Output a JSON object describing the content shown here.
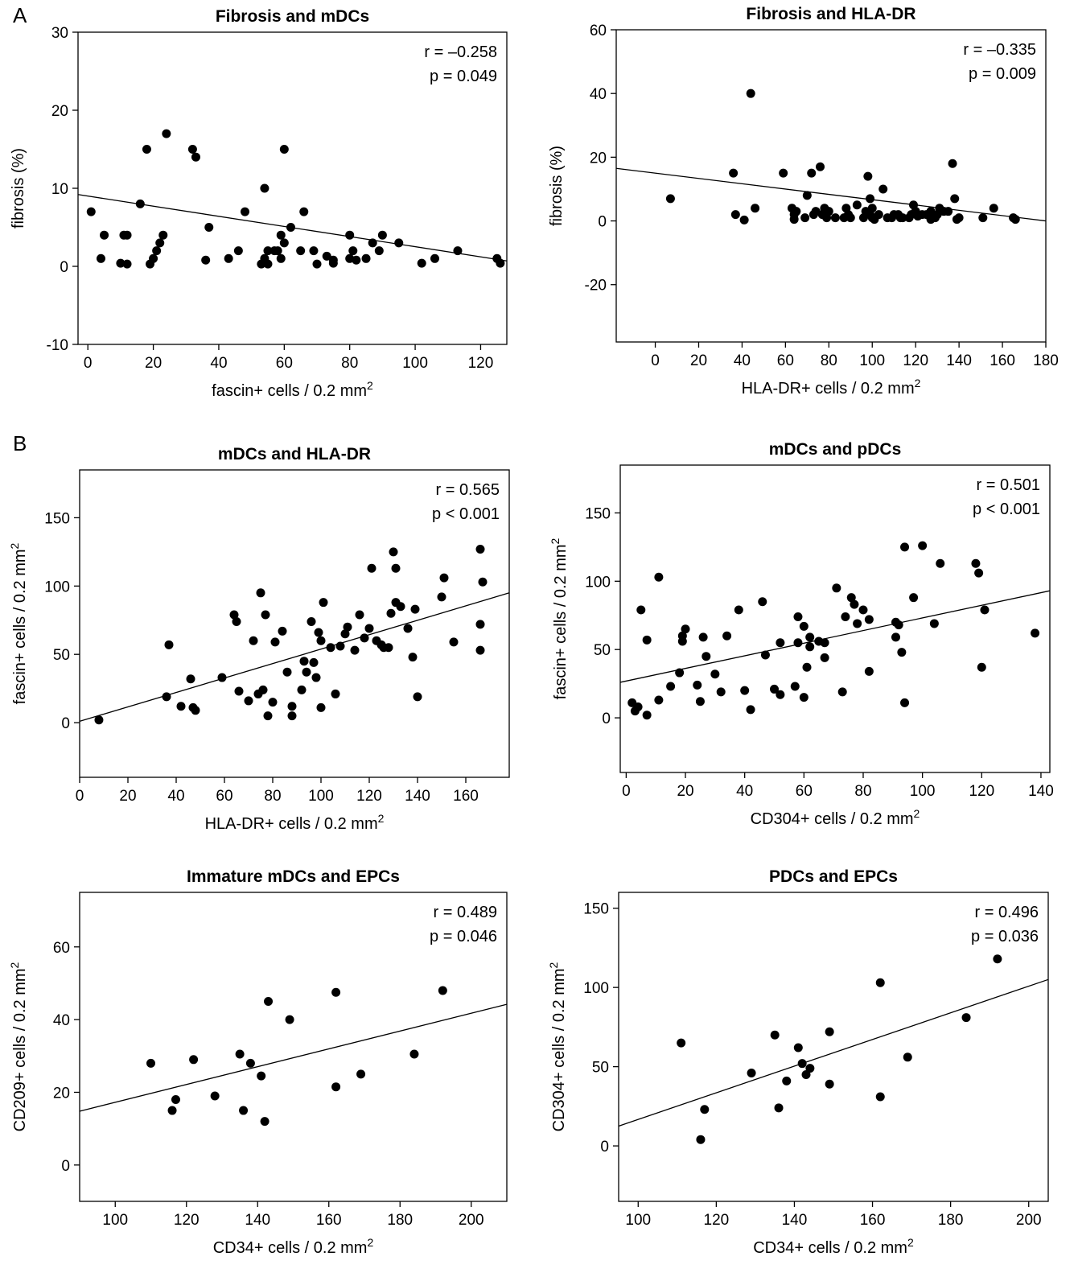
{
  "panel_labels": [
    "A",
    "B"
  ],
  "chart_data": [
    {
      "type": "scatter",
      "title": "Fibrosis and mDCs",
      "xlabel": "fascin+ cells / 0.2 mm",
      "xlabel_sup": "2",
      "ylabel": "fibrosis (%)",
      "xlim": [
        -3,
        128
      ],
      "ylim": [
        -10,
        30
      ],
      "xticks": [
        0,
        20,
        40,
        60,
        80,
        100,
        120
      ],
      "yticks": [
        -10,
        0,
        10,
        20,
        30
      ],
      "stats": [
        "r = –0.258",
        "p = 0.049"
      ],
      "grid": false,
      "fit_line": [
        [
          -3,
          9.2
        ],
        [
          128,
          0.7
        ]
      ],
      "points": [
        [
          1,
          7
        ],
        [
          4,
          1
        ],
        [
          5,
          4
        ],
        [
          10,
          0.4
        ],
        [
          11,
          4
        ],
        [
          12,
          4
        ],
        [
          12,
          0.3
        ],
        [
          16,
          8
        ],
        [
          18,
          15
        ],
        [
          19,
          0.3
        ],
        [
          20,
          1
        ],
        [
          21,
          2
        ],
        [
          22,
          3
        ],
        [
          23,
          4
        ],
        [
          24,
          17
        ],
        [
          32,
          15
        ],
        [
          33,
          14
        ],
        [
          36,
          0.8
        ],
        [
          37,
          5
        ],
        [
          43,
          1
        ],
        [
          46,
          2
        ],
        [
          48,
          7
        ],
        [
          53,
          0.3
        ],
        [
          54,
          1
        ],
        [
          54,
          10
        ],
        [
          55,
          2
        ],
        [
          55,
          0.3
        ],
        [
          57,
          2
        ],
        [
          58,
          2
        ],
        [
          59,
          1
        ],
        [
          59,
          4
        ],
        [
          60,
          3
        ],
        [
          60,
          15
        ],
        [
          62,
          5
        ],
        [
          65,
          2
        ],
        [
          66,
          7
        ],
        [
          69,
          2
        ],
        [
          70,
          0.3
        ],
        [
          73,
          1.3
        ],
        [
          75,
          0.8
        ],
        [
          75,
          0.4
        ],
        [
          80,
          4
        ],
        [
          80,
          1
        ],
        [
          81,
          2
        ],
        [
          82,
          0.8
        ],
        [
          85,
          1
        ],
        [
          87,
          3
        ],
        [
          89,
          2
        ],
        [
          90,
          4
        ],
        [
          95,
          3
        ],
        [
          102,
          0.4
        ],
        [
          106,
          1
        ],
        [
          113,
          2
        ],
        [
          125,
          1
        ],
        [
          126,
          0.4
        ]
      ]
    },
    {
      "type": "scatter",
      "title": "Fibrosis and HLA-DR",
      "xlabel": "HLA-DR+ cells / 0.2 mm",
      "xlabel_sup": "2",
      "ylabel": "fibrosis (%)",
      "xlim": [
        -18,
        180
      ],
      "ylim": [
        -38,
        60
      ],
      "xticks": [
        0,
        20,
        40,
        60,
        80,
        100,
        120,
        140,
        160,
        180
      ],
      "yticks": [
        -20,
        0,
        20,
        40,
        60
      ],
      "stats": [
        "r = –0.335",
        "p = 0.009"
      ],
      "grid": false,
      "fit_line": [
        [
          -18,
          16.5
        ],
        [
          180,
          0
        ]
      ],
      "points": [
        [
          7,
          7
        ],
        [
          36,
          15
        ],
        [
          37,
          2
        ],
        [
          41,
          0.3
        ],
        [
          44,
          40
        ],
        [
          46,
          4
        ],
        [
          59,
          15
        ],
        [
          63,
          4
        ],
        [
          64,
          0.5
        ],
        [
          64,
          2
        ],
        [
          65,
          3
        ],
        [
          69,
          1
        ],
        [
          70,
          8
        ],
        [
          72,
          15
        ],
        [
          73,
          2
        ],
        [
          74,
          3
        ],
        [
          76,
          17
        ],
        [
          77,
          2
        ],
        [
          78,
          4
        ],
        [
          79,
          1
        ],
        [
          80,
          3
        ],
        [
          83,
          1
        ],
        [
          87,
          1
        ],
        [
          88,
          4
        ],
        [
          89,
          2
        ],
        [
          90,
          1
        ],
        [
          93,
          5
        ],
        [
          96,
          1
        ],
        [
          97,
          3
        ],
        [
          98,
          14
        ],
        [
          99,
          7
        ],
        [
          99,
          2
        ],
        [
          100,
          1
        ],
        [
          100,
          4
        ],
        [
          101,
          0.5
        ],
        [
          103,
          2
        ],
        [
          105,
          10
        ],
        [
          107,
          1
        ],
        [
          109,
          1
        ],
        [
          110,
          2
        ],
        [
          112,
          2
        ],
        [
          113,
          1
        ],
        [
          114,
          1
        ],
        [
          117,
          1
        ],
        [
          118,
          2
        ],
        [
          119,
          5
        ],
        [
          120,
          3
        ],
        [
          121,
          1.5
        ],
        [
          123,
          2
        ],
        [
          125,
          2
        ],
        [
          127,
          0.5
        ],
        [
          127,
          3
        ],
        [
          129,
          1
        ],
        [
          130,
          2
        ],
        [
          131,
          4
        ],
        [
          133,
          3
        ],
        [
          135,
          3
        ],
        [
          137,
          18
        ],
        [
          138,
          7
        ],
        [
          139,
          0.5
        ],
        [
          140,
          1
        ],
        [
          151,
          1
        ],
        [
          156,
          4
        ],
        [
          165,
          1
        ],
        [
          166,
          0.5
        ]
      ]
    },
    {
      "type": "scatter",
      "title": "mDCs and HLA-DR",
      "xlabel": "HLA-DR+ cells / 0.2 mm",
      "xlabel_sup": "2",
      "ylabel": "fascin+ cells / 0.2 mm",
      "ylabel_sup": "2",
      "xlim": [
        0,
        178
      ],
      "ylim": [
        -40,
        185
      ],
      "xticks": [
        0,
        20,
        40,
        60,
        80,
        100,
        120,
        140,
        160
      ],
      "yticks": [
        0,
        50,
        100,
        150
      ],
      "stats": [
        "r = 0.565",
        "p < 0.001"
      ],
      "grid": false,
      "fit_line": [
        [
          0,
          1
        ],
        [
          178,
          95
        ]
      ],
      "points": [
        [
          8,
          2
        ],
        [
          36,
          19
        ],
        [
          37,
          57
        ],
        [
          42,
          12
        ],
        [
          46,
          32
        ],
        [
          47,
          11
        ],
        [
          48,
          9
        ],
        [
          59,
          33
        ],
        [
          64,
          79
        ],
        [
          65,
          74
        ],
        [
          66,
          23
        ],
        [
          70,
          16
        ],
        [
          72,
          60
        ],
        [
          74,
          21
        ],
        [
          75,
          95
        ],
        [
          76,
          24
        ],
        [
          77,
          79
        ],
        [
          78,
          5
        ],
        [
          80,
          15
        ],
        [
          81,
          59
        ],
        [
          84,
          67
        ],
        [
          86,
          37
        ],
        [
          88,
          12
        ],
        [
          88,
          5
        ],
        [
          92,
          24
        ],
        [
          93,
          45
        ],
        [
          94,
          37
        ],
        [
          96,
          74
        ],
        [
          97,
          44
        ],
        [
          98,
          33
        ],
        [
          99,
          66
        ],
        [
          100,
          60
        ],
        [
          100,
          11
        ],
        [
          101,
          88
        ],
        [
          104,
          55
        ],
        [
          106,
          21
        ],
        [
          108,
          56
        ],
        [
          110,
          65
        ],
        [
          111,
          70
        ],
        [
          114,
          53
        ],
        [
          116,
          79
        ],
        [
          118,
          62
        ],
        [
          120,
          69
        ],
        [
          121,
          113
        ],
        [
          123,
          60
        ],
        [
          125,
          57
        ],
        [
          126,
          55
        ],
        [
          128,
          55
        ],
        [
          129,
          80
        ],
        [
          130,
          125
        ],
        [
          131,
          113
        ],
        [
          131,
          88
        ],
        [
          133,
          85
        ],
        [
          136,
          69
        ],
        [
          138,
          48
        ],
        [
          139,
          83
        ],
        [
          140,
          19
        ],
        [
          150,
          92
        ],
        [
          151,
          106
        ],
        [
          155,
          59
        ],
        [
          166,
          127
        ],
        [
          166,
          72
        ],
        [
          166,
          53
        ],
        [
          167,
          103
        ]
      ]
    },
    {
      "type": "scatter",
      "title": "mDCs and pDCs",
      "xlabel": "CD304+ cells / 0.2 mm",
      "xlabel_sup": "2",
      "ylabel": "fascin+ cells / 0.2 mm",
      "ylabel_sup": "2",
      "xlim": [
        -2,
        143
      ],
      "ylim": [
        -40,
        185
      ],
      "xticks": [
        0,
        20,
        40,
        60,
        80,
        100,
        120,
        140
      ],
      "yticks": [
        0,
        50,
        100,
        150
      ],
      "stats": [
        "r = 0.501",
        "p < 0.001"
      ],
      "grid": false,
      "fit_line": [
        [
          -2,
          26
        ],
        [
          143,
          93
        ]
      ],
      "points": [
        [
          2,
          11
        ],
        [
          3,
          5
        ],
        [
          4,
          8
        ],
        [
          5,
          79
        ],
        [
          7,
          2
        ],
        [
          7,
          57
        ],
        [
          11,
          13
        ],
        [
          11,
          103
        ],
        [
          15,
          23
        ],
        [
          18,
          33
        ],
        [
          19,
          60
        ],
        [
          19,
          56
        ],
        [
          20,
          65
        ],
        [
          24,
          24
        ],
        [
          25,
          12
        ],
        [
          26,
          59
        ],
        [
          27,
          45
        ],
        [
          30,
          32
        ],
        [
          32,
          19
        ],
        [
          34,
          60
        ],
        [
          38,
          79
        ],
        [
          40,
          20
        ],
        [
          42,
          6
        ],
        [
          46,
          85
        ],
        [
          47,
          46
        ],
        [
          50,
          21
        ],
        [
          52,
          17
        ],
        [
          52,
          55
        ],
        [
          57,
          23
        ],
        [
          58,
          74
        ],
        [
          58,
          55
        ],
        [
          60,
          15
        ],
        [
          60,
          67
        ],
        [
          61,
          37
        ],
        [
          62,
          59
        ],
        [
          62,
          52
        ],
        [
          65,
          56
        ],
        [
          67,
          55
        ],
        [
          67,
          44
        ],
        [
          71,
          95
        ],
        [
          73,
          19
        ],
        [
          74,
          74
        ],
        [
          76,
          88
        ],
        [
          77,
          83
        ],
        [
          78,
          69
        ],
        [
          80,
          79
        ],
        [
          82,
          72
        ],
        [
          82,
          34
        ],
        [
          91,
          70
        ],
        [
          92,
          68
        ],
        [
          93,
          48
        ],
        [
          91,
          59
        ],
        [
          94,
          125
        ],
        [
          94,
          11
        ],
        [
          97,
          88
        ],
        [
          100,
          126
        ],
        [
          104,
          69
        ],
        [
          106,
          113
        ],
        [
          118,
          113
        ],
        [
          119,
          106
        ],
        [
          120,
          37
        ],
        [
          121,
          79
        ],
        [
          138,
          62
        ]
      ]
    },
    {
      "type": "scatter",
      "title": "Immature mDCs and EPCs",
      "xlabel": "CD34+ cells / 0.2 mm",
      "xlabel_sup": "2",
      "ylabel": "CD209+ cells / 0.2 mm",
      "ylabel_sup": "2",
      "xlim": [
        90,
        210
      ],
      "ylim": [
        -10,
        75
      ],
      "xticks": [
        100,
        120,
        140,
        160,
        180,
        200
      ],
      "yticks": [
        0,
        20,
        40,
        60
      ],
      "stats": [
        "r = 0.489",
        "p = 0.046"
      ],
      "grid": false,
      "fit_line": [
        [
          90,
          14.8
        ],
        [
          210,
          44.2
        ]
      ],
      "points": [
        [
          110,
          28
        ],
        [
          116,
          15
        ],
        [
          117,
          18
        ],
        [
          122,
          29
        ],
        [
          128,
          19
        ],
        [
          135,
          30.5
        ],
        [
          136,
          15
        ],
        [
          138,
          28
        ],
        [
          141,
          24.5
        ],
        [
          142,
          12
        ],
        [
          143,
          45
        ],
        [
          149,
          40
        ],
        [
          162,
          47.5
        ],
        [
          162,
          21.5
        ],
        [
          169,
          25
        ],
        [
          184,
          30.5
        ],
        [
          192,
          48
        ]
      ]
    },
    {
      "type": "scatter",
      "title": "PDCs and EPCs",
      "xlabel": "CD34+ cells / 0.2 mm",
      "xlabel_sup": "2",
      "ylabel": "CD304+ cells / 0.2 mm",
      "ylabel_sup": "2",
      "xlim": [
        95,
        205
      ],
      "ylim": [
        -35,
        160
      ],
      "xticks": [
        100,
        120,
        140,
        160,
        180,
        200
      ],
      "yticks": [
        0,
        50,
        100,
        150
      ],
      "stats": [
        "r = 0.496",
        "p = 0.036"
      ],
      "grid": false,
      "fit_line": [
        [
          95,
          12.5
        ],
        [
          205,
          105
        ]
      ],
      "points": [
        [
          111,
          65
        ],
        [
          116,
          4
        ],
        [
          117,
          23
        ],
        [
          129,
          46
        ],
        [
          135,
          70
        ],
        [
          136,
          24
        ],
        [
          138,
          41
        ],
        [
          141,
          62
        ],
        [
          142,
          52
        ],
        [
          143,
          45
        ],
        [
          144,
          49
        ],
        [
          149,
          39
        ],
        [
          149,
          72
        ],
        [
          162,
          103
        ],
        [
          162,
          31
        ],
        [
          169,
          56
        ],
        [
          184,
          81
        ],
        [
          192,
          118
        ]
      ]
    }
  ]
}
